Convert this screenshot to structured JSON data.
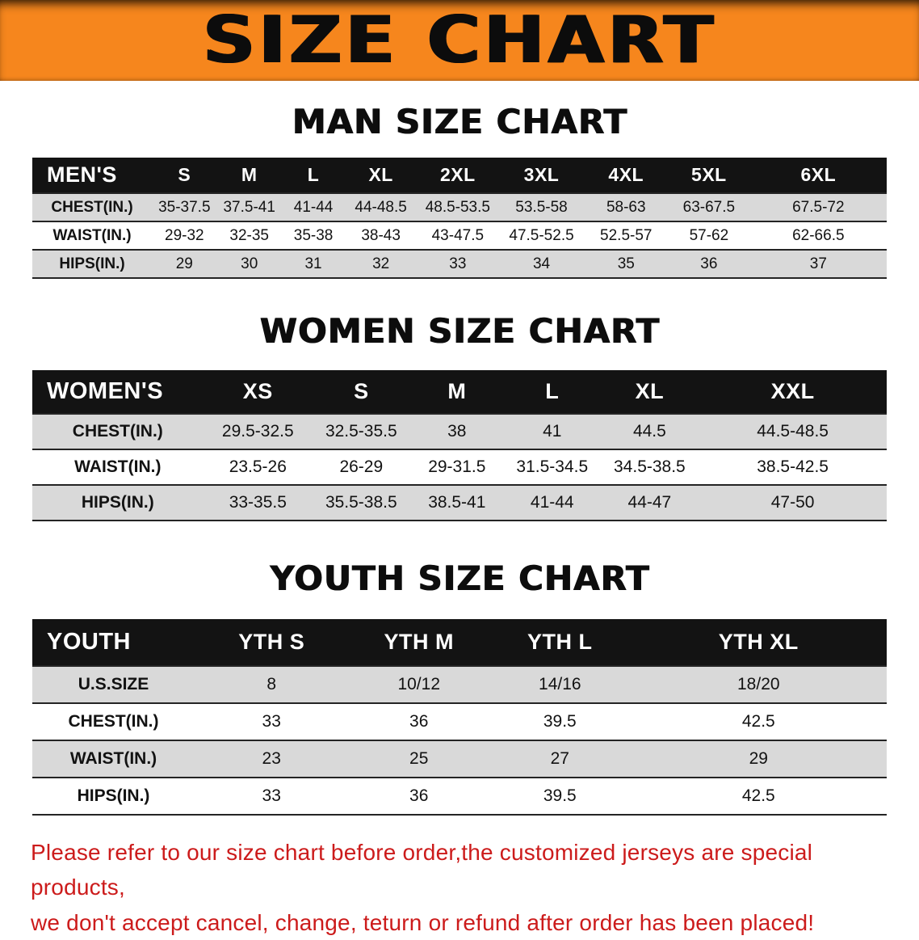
{
  "banner": {
    "title": "SIZE CHART",
    "bg_color": "#f6861d",
    "text_color": "#0c0c0c"
  },
  "sections": [
    {
      "id": "men",
      "heading": "MAN SIZE CHART",
      "table": {
        "header": [
          "MEN'S",
          "S",
          "M",
          "L",
          "XL",
          "2XL",
          "3XL",
          "4XL",
          "5XL",
          "6XL"
        ],
        "rows": [
          {
            "label": "CHEST(IN.)",
            "values": [
              "35-37.5",
              "37.5-41",
              "41-44",
              "44-48.5",
              "48.5-53.5",
              "53.5-58",
              "58-63",
              "63-67.5",
              "67.5-72"
            ]
          },
          {
            "label": "WAIST(IN.)",
            "values": [
              "29-32",
              "32-35",
              "35-38",
              "38-43",
              "43-47.5",
              "47.5-52.5",
              "52.5-57",
              "57-62",
              "62-66.5"
            ]
          },
          {
            "label": "HIPS(IN.)",
            "values": [
              "29",
              "30",
              "31",
              "32",
              "33",
              "34",
              "35",
              "36",
              "37"
            ]
          }
        ]
      }
    },
    {
      "id": "women",
      "heading": "WOMEN SIZE CHART",
      "table": {
        "header": [
          "WOMEN'S",
          "XS",
          "S",
          "M",
          "L",
          "XL",
          "XXL"
        ],
        "rows": [
          {
            "label": "CHEST(IN.)",
            "values": [
              "29.5-32.5",
              "32.5-35.5",
              "38",
              "41",
              "44.5",
              "44.5-48.5"
            ]
          },
          {
            "label": "WAIST(IN.)",
            "values": [
              "23.5-26",
              "26-29",
              "29-31.5",
              "31.5-34.5",
              "34.5-38.5",
              "38.5-42.5"
            ]
          },
          {
            "label": "HIPS(IN.)",
            "values": [
              "33-35.5",
              "35.5-38.5",
              "38.5-41",
              "41-44",
              "44-47",
              "47-50"
            ]
          }
        ]
      }
    },
    {
      "id": "youth",
      "heading": "YOUTH SIZE CHART",
      "table": {
        "header": [
          "YOUTH",
          "YTH S",
          "YTH M",
          "YTH L",
          "YTH XL"
        ],
        "rows": [
          {
            "label": "U.S.SIZE",
            "values": [
              "8",
              "10/12",
              "14/16",
              "18/20"
            ]
          },
          {
            "label": "CHEST(IN.)",
            "values": [
              "33",
              "36",
              "39.5",
              "42.5"
            ]
          },
          {
            "label": "WAIST(IN.)",
            "values": [
              "23",
              "25",
              "27",
              "29"
            ]
          },
          {
            "label": "HIPS(IN.)",
            "values": [
              "33",
              "36",
              "39.5",
              "42.5"
            ]
          }
        ]
      }
    }
  ],
  "footer": {
    "color": "#cc1b1b",
    "lines": [
      "Please refer to our size chart before order,the customized jerseys are special products,",
      "we don't accept cancel, change, teturn or refund after order has been placed!"
    ]
  }
}
